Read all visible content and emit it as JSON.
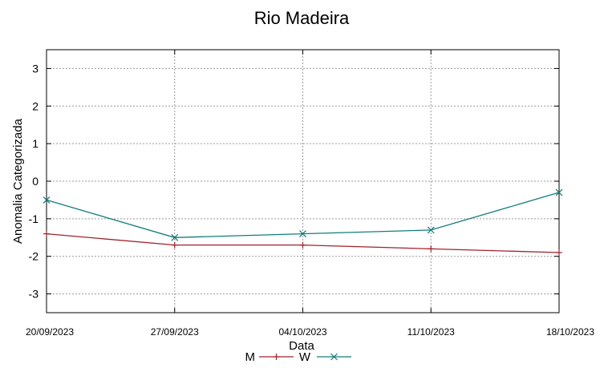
{
  "chart_data": {
    "type": "line",
    "title": "Rio Madeira",
    "xlabel": "Data",
    "ylabel": "Anomalia Categorizada",
    "categories": [
      "20/09/2023",
      "27/09/2023",
      "04/10/2023",
      "11/10/2023",
      "18/10/2023"
    ],
    "yticks": [
      3,
      2,
      1,
      0,
      -1,
      -2,
      -3
    ],
    "ylim": [
      -3.5,
      3.5
    ],
    "grid": true,
    "legend_position": "bottom",
    "series": [
      {
        "name": "M",
        "color": "#a0232b",
        "marker": "plus",
        "values": [
          -1.4,
          -1.7,
          -1.7,
          -1.8,
          -1.9
        ]
      },
      {
        "name": "W",
        "color": "#137d7a",
        "marker": "cross",
        "values": [
          -0.5,
          -1.5,
          -1.4,
          -1.3,
          -0.3
        ]
      }
    ]
  }
}
